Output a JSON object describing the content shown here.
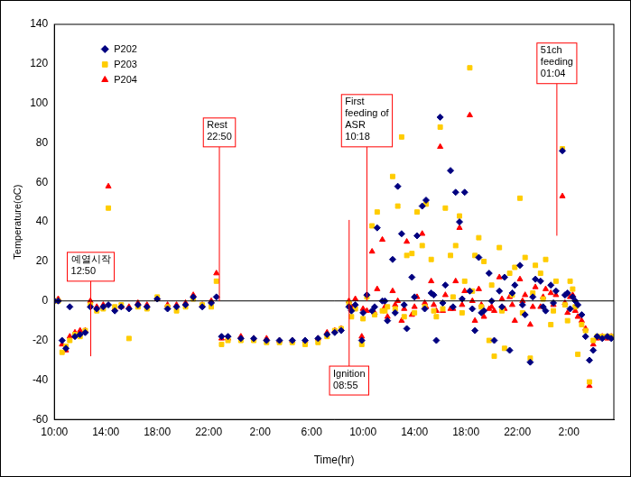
{
  "chart_data": {
    "type": "scatter",
    "x_label": "Time(hr)",
    "y_label": "Temperature(oC)",
    "xlim": [
      0,
      43.5
    ],
    "xticks": [
      {
        "value": 0,
        "label": "10:00"
      },
      {
        "value": 4,
        "label": "14:00"
      },
      {
        "value": 8,
        "label": "18:00"
      },
      {
        "value": 12,
        "label": "22:00"
      },
      {
        "value": 16,
        "label": "2:00"
      },
      {
        "value": 20,
        "label": "6:00"
      },
      {
        "value": 24,
        "label": "10:00"
      },
      {
        "value": 28,
        "label": "14:00"
      },
      {
        "value": 32,
        "label": "18:00"
      },
      {
        "value": 36,
        "label": "22:00"
      },
      {
        "value": 40,
        "label": "2:00"
      }
    ],
    "ylim": [
      -60,
      140
    ],
    "yticks": [
      -60,
      -40,
      -20,
      0,
      20,
      40,
      60,
      80,
      100,
      120,
      140
    ],
    "grid": false,
    "legend": "upper left",
    "x": [
      0.0,
      0.3,
      0.6,
      0.9,
      1.2,
      1.6,
      2.0,
      2.4,
      2.8,
      3.3,
      3.8,
      4.2,
      4.7,
      5.2,
      5.8,
      6.5,
      7.2,
      8.0,
      8.8,
      9.5,
      10.2,
      10.8,
      11.5,
      12.2,
      12.6,
      13.0,
      13.5,
      14.5,
      15.5,
      16.5,
      17.5,
      18.5,
      19.5,
      20.5,
      21.2,
      21.8,
      22.3,
      22.9,
      23.1,
      23.4,
      23.9,
      24.0,
      24.3,
      24.7,
      24.9,
      25.1,
      25.5,
      25.7,
      25.9,
      26.3,
      26.5,
      26.7,
      27.0,
      27.2,
      27.4,
      27.8,
      28.0,
      28.2,
      28.6,
      28.8,
      28.9,
      29.3,
      29.5,
      29.7,
      30.0,
      30.2,
      30.4,
      30.8,
      31.0,
      31.2,
      31.5,
      31.7,
      31.9,
      32.3,
      32.5,
      32.7,
      33.0,
      33.2,
      33.4,
      33.8,
      34.0,
      34.2,
      34.6,
      34.8,
      35.0,
      35.4,
      35.6,
      35.8,
      36.2,
      36.4,
      36.6,
      37.0,
      37.2,
      37.4,
      37.8,
      38.0,
      38.2,
      38.6,
      38.8,
      39.0,
      39.5,
      39.7,
      39.9,
      40.1,
      40.3,
      40.5,
      40.7,
      41.0,
      41.3,
      41.6,
      41.9,
      42.2,
      42.6,
      43.0,
      43.3
    ],
    "series": [
      {
        "name": "P202",
        "color": "#000080",
        "marker": "diamond",
        "values": [
          0,
          0,
          -20,
          -24,
          -3,
          -18,
          -17,
          -16,
          -3,
          -4,
          -3,
          -2,
          -5,
          -3,
          -4,
          -2,
          -3,
          1,
          -4,
          -3,
          -2,
          2,
          -3,
          -1,
          2,
          -18,
          -18,
          -19,
          -19,
          -20,
          -20,
          -20,
          -20,
          -19,
          -17,
          -16,
          -15,
          -3,
          -5,
          -2,
          -20,
          -6,
          3,
          -5,
          -3,
          37,
          0,
          0,
          -10,
          21,
          -6,
          58,
          34,
          -2,
          -14,
          12,
          2,
          33,
          48,
          -4,
          51,
          4,
          3,
          -20,
          93,
          -1,
          8,
          66,
          -3,
          55,
          40,
          1,
          55,
          5,
          -4,
          -15,
          22,
          -6,
          -5,
          14,
          0,
          -20,
          5,
          -3,
          12,
          -25,
          4,
          8,
          18,
          -2,
          -7,
          -31,
          2,
          11,
          10,
          -3,
          -5,
          8,
          -1,
          5,
          76,
          3,
          4,
          -4,
          2,
          0,
          -2,
          -7,
          -18,
          -30,
          -25,
          -18,
          -19,
          -18,
          -19
        ]
      },
      {
        "name": "P203",
        "color": "#FFCC00",
        "marker": "square",
        "values": [
          0,
          0,
          -26,
          -23,
          -20,
          -17,
          -18,
          -15,
          -2,
          -5,
          -4,
          47,
          -3,
          -2,
          -19,
          -3,
          -4,
          2,
          -3,
          -5,
          -3,
          1,
          -2,
          -3,
          10,
          -22,
          -20,
          -20,
          -20,
          -21,
          -21,
          -21,
          -22,
          -21,
          -18,
          -15,
          -14,
          -1,
          -8,
          -4,
          -22,
          -9,
          2,
          38,
          -7,
          45,
          -5,
          -5,
          -3,
          63,
          -4,
          48,
          83,
          -8,
          23,
          24,
          -6,
          45,
          28,
          -3,
          49,
          21,
          -5,
          -8,
          88,
          -4,
          47,
          23,
          2,
          28,
          43,
          -6,
          10,
          118,
          5,
          23,
          32,
          -3,
          20,
          -20,
          8,
          -28,
          27,
          -5,
          -24,
          14,
          3,
          17,
          52,
          -6,
          22,
          -29,
          4,
          18,
          14,
          1,
          21,
          -12,
          -5,
          10,
          77,
          -2,
          -10,
          10,
          6,
          -3,
          -27,
          -12,
          -15,
          -41,
          -20,
          -18,
          -18,
          -18,
          -18
        ]
      },
      {
        "name": "P204",
        "color": "#FF0000",
        "marker": "triangle",
        "values": [
          0,
          1,
          -22,
          -25,
          -18,
          -16,
          -15,
          -15,
          0,
          -3,
          -2,
          58,
          -4,
          -3,
          -3,
          -1,
          -2,
          1,
          -2,
          -2,
          -1,
          3,
          -2,
          0,
          14,
          -19,
          -19,
          -18,
          -19,
          -19,
          -20,
          -20,
          -20,
          -19,
          -16,
          -15,
          -14,
          0,
          -3,
          1,
          -18,
          -4,
          -5,
          25,
          -6,
          6,
          31,
          -3,
          -8,
          5,
          -2,
          0,
          -10,
          -4,
          30,
          -7,
          -3,
          2,
          34,
          -1,
          -3,
          10,
          -2,
          -5,
          78,
          -5,
          3,
          -4,
          -4,
          10,
          37,
          -2,
          5,
          94,
          0,
          -10,
          6,
          -2,
          -8,
          -4,
          -3,
          -5,
          12,
          1,
          -4,
          2,
          -2,
          -10,
          11,
          0,
          3,
          -12,
          -3,
          7,
          -3,
          2,
          6,
          4,
          -2,
          3,
          53,
          -1,
          -6,
          2,
          3,
          -5,
          -8,
          -10,
          -14,
          -43,
          -22,
          -19,
          -18,
          -19,
          -18
        ]
      }
    ],
    "annotations": [
      {
        "text": "예열시작\n12:50",
        "x": 2.83,
        "y": [
          10,
          -28
        ]
      },
      {
        "text": "Rest\n22:50",
        "x": 12.83,
        "y": [
          78,
          0
        ]
      },
      {
        "text": "Ignition\n08:55",
        "x": 22.92,
        "y": [
          -33,
          41
        ]
      },
      {
        "text": "First\nfeeding of\nASR\n10:18",
        "x": 24.3,
        "y": [
          78,
          0
        ]
      },
      {
        "text": "51ch\nfeeding\n01:04",
        "x": 39.07,
        "y": [
          110,
          33
        ]
      }
    ]
  }
}
